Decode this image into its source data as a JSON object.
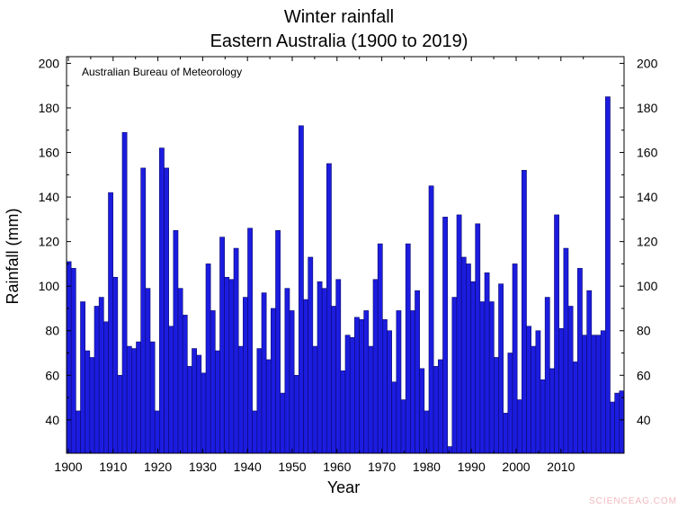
{
  "chart_data": {
    "type": "bar",
    "title": "Winter rainfall",
    "subtitle": "Eastern Australia (1900 to 2019)",
    "xlabel": "Year",
    "ylabel": "Rainfall (mm)",
    "annotation": "Australian Bureau of Meteorology",
    "ylim": [
      25,
      203
    ],
    "yticks": [
      40,
      60,
      80,
      100,
      120,
      140,
      160,
      180,
      200
    ],
    "xticks": [
      1900,
      1910,
      1920,
      1930,
      1940,
      1950,
      1960,
      1970,
      1980,
      1990,
      2000,
      2010
    ],
    "grid": false,
    "bar_color": "#1c1ce0",
    "x_start": 1900,
    "values": [
      111,
      108,
      44,
      93,
      71,
      68,
      91,
      95,
      84,
      142,
      104,
      60,
      169,
      73,
      72,
      75,
      153,
      99,
      75,
      44,
      162,
      153,
      82,
      125,
      99,
      87,
      64,
      72,
      69,
      61,
      110,
      89,
      71,
      122,
      104,
      103,
      117,
      73,
      95,
      126,
      44,
      72,
      97,
      67,
      90,
      125,
      52,
      99,
      89,
      60,
      172,
      94,
      113,
      73,
      102,
      99,
      155,
      91,
      103,
      62,
      78,
      77,
      86,
      85,
      89,
      73,
      103,
      119,
      85,
      80,
      57,
      89,
      49,
      119,
      89,
      98,
      63,
      44,
      145,
      64,
      67,
      131,
      28,
      95,
      132,
      113,
      110,
      102,
      128,
      93,
      106,
      93,
      68,
      101,
      43,
      70,
      110,
      49,
      152,
      82,
      73,
      80,
      58,
      95,
      63,
      132,
      81,
      117,
      91,
      66,
      108,
      78,
      98,
      78,
      78,
      80,
      185,
      48,
      52,
      53
    ]
  },
  "watermark": "SCIENCEAG.COM"
}
